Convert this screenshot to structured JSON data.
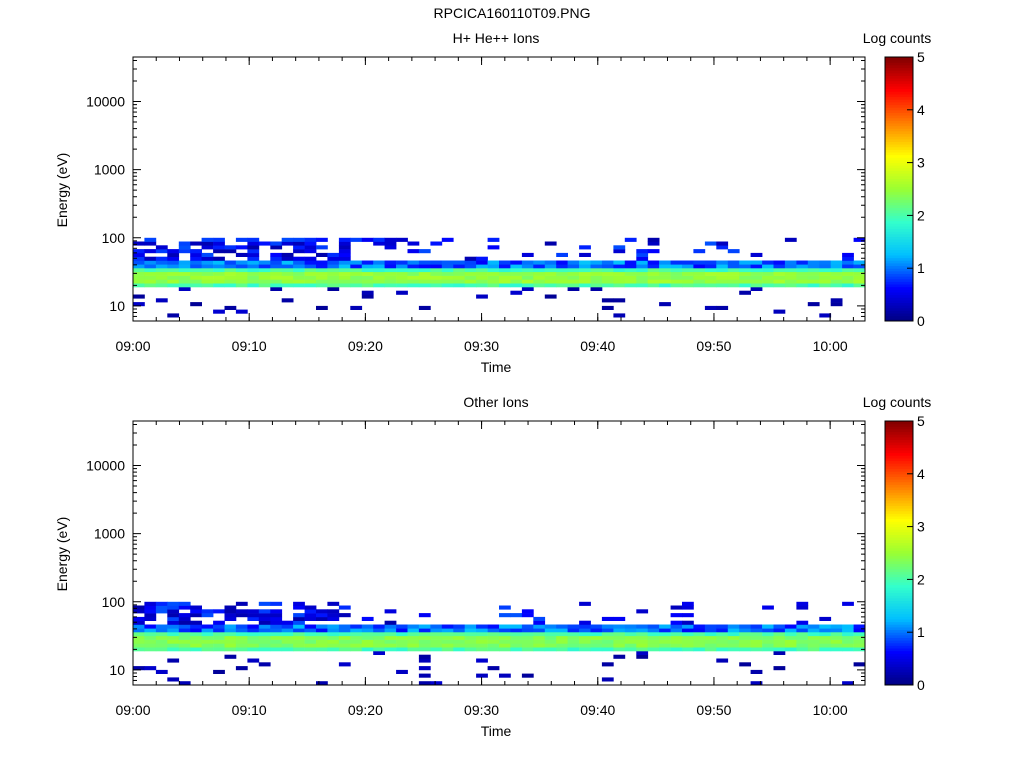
{
  "page_title": "RPCICA160110T09.PNG",
  "chart_data": [
    {
      "type": "heatmap",
      "title": "H+ He++ Ions",
      "xlabel": "Time",
      "ylabel": "Energy (eV)",
      "y_scale": "log",
      "ylim": [
        6,
        45000
      ],
      "xlim": [
        "09:00",
        "10:03"
      ],
      "x_ticks": [
        "09:00",
        "09:10",
        "09:20",
        "09:30",
        "09:40",
        "09:50",
        "10:00"
      ],
      "y_ticks": [
        "10",
        "100",
        "1000",
        "10000"
      ],
      "colorbar": {
        "label": "Log counts",
        "range": [
          0,
          5
        ],
        "ticks": [
          "0",
          "1",
          "2",
          "3",
          "4",
          "5"
        ]
      },
      "colormap": [
        "#000080",
        "#0000ff",
        "#00bfff",
        "#33ffcc",
        "#99ff33",
        "#ffff00",
        "#ff8000",
        "#ff0000",
        "#800000"
      ],
      "description_band_eV": [
        18,
        95
      ],
      "peak_energy_eV": 27,
      "peak_log_counts": 2.6,
      "seed": 7
    },
    {
      "type": "heatmap",
      "title": "Other Ions",
      "xlabel": "Time",
      "ylabel": "Energy (eV)",
      "y_scale": "log",
      "ylim": [
        6,
        45000
      ],
      "xlim": [
        "09:00",
        "10:03"
      ],
      "x_ticks": [
        "09:00",
        "09:10",
        "09:20",
        "09:30",
        "09:40",
        "09:50",
        "10:00"
      ],
      "y_ticks": [
        "10",
        "100",
        "1000",
        "10000"
      ],
      "colorbar": {
        "label": "Log counts",
        "range": [
          0,
          5
        ],
        "ticks": [
          "0",
          "1",
          "2",
          "3",
          "4",
          "5"
        ]
      },
      "colormap": [
        "#000080",
        "#0000ff",
        "#00bfff",
        "#33ffcc",
        "#99ff33",
        "#ffff00",
        "#ff8000",
        "#ff0000",
        "#800000"
      ],
      "description_band_eV": [
        18,
        95
      ],
      "peak_energy_eV": 27,
      "peak_log_counts": 2.5,
      "seed": 13
    }
  ]
}
